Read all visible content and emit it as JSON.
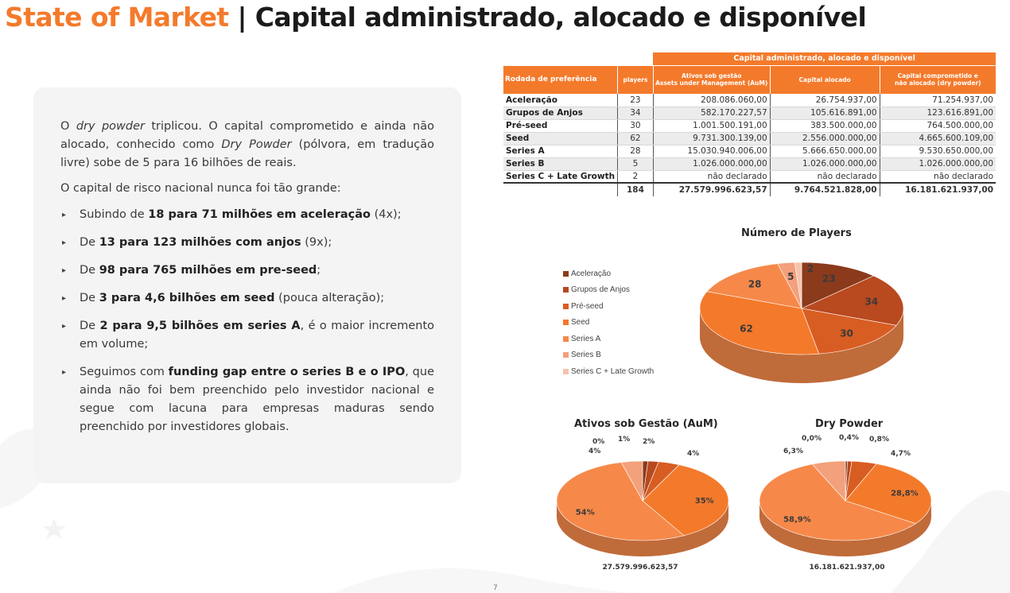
{
  "title": {
    "accent": "State of Market",
    "rest": " | Capital administrado, alocado e disponível"
  },
  "card": {
    "para1": {
      "a": "O ",
      "i1": "dry powder",
      "b": " triplicou. O capital comprometido e ainda não alocado, conhecido como ",
      "i2": "Dry Powder",
      "c": " (pólvora, em tradução livre) sobe de 5 para 16 bilhões de reais."
    },
    "para2": "O capital de risco nacional nunca foi tão grande:",
    "bullets": [
      {
        "pre": "Subindo de ",
        "bold": "18 para 71 milhões em aceleração",
        "post": " (4x);"
      },
      {
        "pre": "De ",
        "bold": "13 para 123 milhões com anjos",
        "post": " (9x);"
      },
      {
        "pre": "De ",
        "bold": "98 para 765 milhões em pre-seed",
        "post": ";"
      },
      {
        "pre": "De ",
        "bold": "3 para 4,6 bilhões em seed",
        "post": " (pouca alteração);"
      },
      {
        "pre": "De ",
        "bold": "2 para 9,5 bilhões em series A",
        "post": ", é o maior incremento em volume;"
      },
      {
        "pre": "Seguimos com ",
        "bold": "funding gap entre o series B e o IPO",
        "post": ", que ainda não foi bem preenchido pelo investidor nacional e segue com lacuna para empresas maduras sendo preenchido por investidores globais."
      }
    ],
    "bullet_marker": "▸"
  },
  "table": {
    "group_header": "Capital administrado, alocado e disponível",
    "headers": [
      "Rodada de preferência",
      "players",
      "Ativos sob gestão\nAssets under Management (AuM)",
      "Capital alocado",
      "Capital comprometido e\nnão alocado (dry powder)"
    ],
    "rows": [
      [
        "Aceleração",
        "23",
        "208.086.060,00",
        "26.754.937,00",
        "71.254.937,00"
      ],
      [
        "Grupos de Anjos",
        "34",
        "582.170.227,57",
        "105.616.891,00",
        "123.616.891,00"
      ],
      [
        "Pré-seed",
        "30",
        "1.001.500.191,00",
        "383.500.000,00",
        "764.500.000,00"
      ],
      [
        "Seed",
        "62",
        "9.731.300.139,00",
        "2.556.000.000,00",
        "4.665.600.109,00"
      ],
      [
        "Series A",
        "28",
        "15.030.940.006,00",
        "5.666.650.000,00",
        "9.530.650.000,00"
      ],
      [
        "Series B",
        "5",
        "1.026.000.000,00",
        "1.026.000.000,00",
        "1.026.000.000,00"
      ],
      [
        "Series C + Late Growth",
        "2",
        "não declarado",
        "não declarado",
        "não declarado"
      ]
    ],
    "total": [
      "",
      "184",
      "27.579.996.623,57",
      "9.764.521.828,00",
      "16.181.621.937,00"
    ]
  },
  "legend_items": [
    "Aceleração",
    "Grupos de Anjos",
    "Pré-seed",
    "Seed",
    "Series A",
    "Series B",
    "Series C + Late Growth"
  ],
  "colors": [
    "#8b3a1c",
    "#b9491f",
    "#d85d22",
    "#f47a2b",
    "#f6894a",
    "#f3a07c",
    "#f5c4ad"
  ],
  "page_number": "7",
  "chart_data": [
    {
      "type": "pie",
      "title": "Número de Players",
      "categories": [
        "Aceleração",
        "Grupos de Anjos",
        "Pré-seed",
        "Seed",
        "Series A",
        "Series B",
        "Series C + Late Growth"
      ],
      "values": [
        23,
        34,
        30,
        62,
        28,
        5,
        2
      ],
      "labels": [
        "23",
        "34",
        "30",
        "62",
        "28",
        "5",
        "2"
      ],
      "legend": "left"
    },
    {
      "type": "pie",
      "title": "Ativos sob Gestão (AuM)",
      "categories": [
        "Aceleração",
        "Grupos de Anjos",
        "Pré-seed",
        "Seed",
        "Series A",
        "Series B",
        "Series C + Late Growth"
      ],
      "values": [
        1,
        2,
        4,
        35,
        54,
        4,
        0
      ],
      "labels": [
        "1%",
        "2%",
        "4%",
        "35%",
        "54%",
        "4%",
        "0%"
      ],
      "total_label": "27.579.996.623,57"
    },
    {
      "type": "pie",
      "title": "Dry Powder",
      "categories": [
        "Aceleração",
        "Grupos de Anjos",
        "Pré-seed",
        "Seed",
        "Series A",
        "Series B",
        "Series C + Late Growth"
      ],
      "values": [
        0.4,
        0.8,
        4.7,
        28.8,
        58.9,
        6.3,
        0.0
      ],
      "labels": [
        "0,4%",
        "0,8%",
        "4,7%",
        "28,8%",
        "58,9%",
        "6,3%",
        "0,0%"
      ],
      "total_label": "16.181.621.937,00"
    }
  ]
}
